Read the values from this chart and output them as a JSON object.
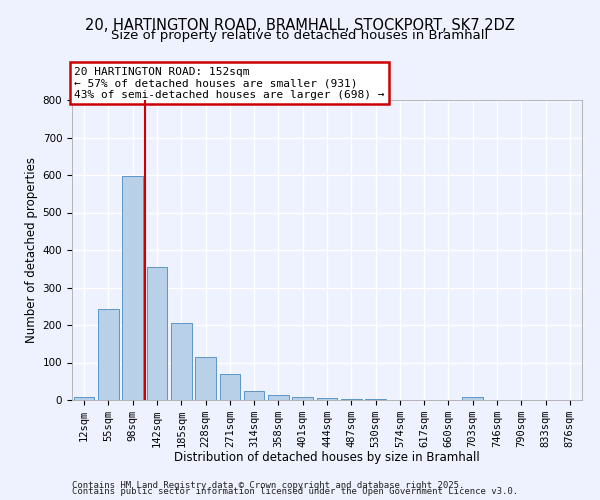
{
  "title": "20, HARTINGTON ROAD, BRAMHALL, STOCKPORT, SK7 2DZ",
  "subtitle": "Size of property relative to detached houses in Bramhall",
  "xlabel": "Distribution of detached houses by size in Bramhall",
  "ylabel": "Number of detached properties",
  "categories": [
    "12sqm",
    "55sqm",
    "98sqm",
    "142sqm",
    "185sqm",
    "228sqm",
    "271sqm",
    "314sqm",
    "358sqm",
    "401sqm",
    "444sqm",
    "487sqm",
    "530sqm",
    "574sqm",
    "617sqm",
    "660sqm",
    "703sqm",
    "746sqm",
    "790sqm",
    "833sqm",
    "876sqm"
  ],
  "values": [
    8,
    242,
    597,
    355,
    205,
    116,
    70,
    24,
    13,
    9,
    5,
    3,
    3,
    1,
    1,
    0,
    8,
    0,
    0,
    0,
    0
  ],
  "bar_color": "#b8d0e8",
  "bar_edge_color": "#5a96c8",
  "background_color": "#eef2ff",
  "grid_color": "#ffffff",
  "vline_color": "#cc0000",
  "annotation_text": "20 HARTINGTON ROAD: 152sqm\n← 57% of detached houses are smaller (931)\n43% of semi-detached houses are larger (698) →",
  "annotation_box_color": "#cc0000",
  "ylim": [
    0,
    800
  ],
  "yticks": [
    0,
    100,
    200,
    300,
    400,
    500,
    600,
    700,
    800
  ],
  "footer_line1": "Contains HM Land Registry data © Crown copyright and database right 2025.",
  "footer_line2": "Contains public sector information licensed under the Open Government Licence v3.0.",
  "title_fontsize": 10.5,
  "subtitle_fontsize": 9.5,
  "xlabel_fontsize": 8.5,
  "ylabel_fontsize": 8.5,
  "tick_fontsize": 7.5,
  "annotation_fontsize": 8,
  "footer_fontsize": 6.5
}
